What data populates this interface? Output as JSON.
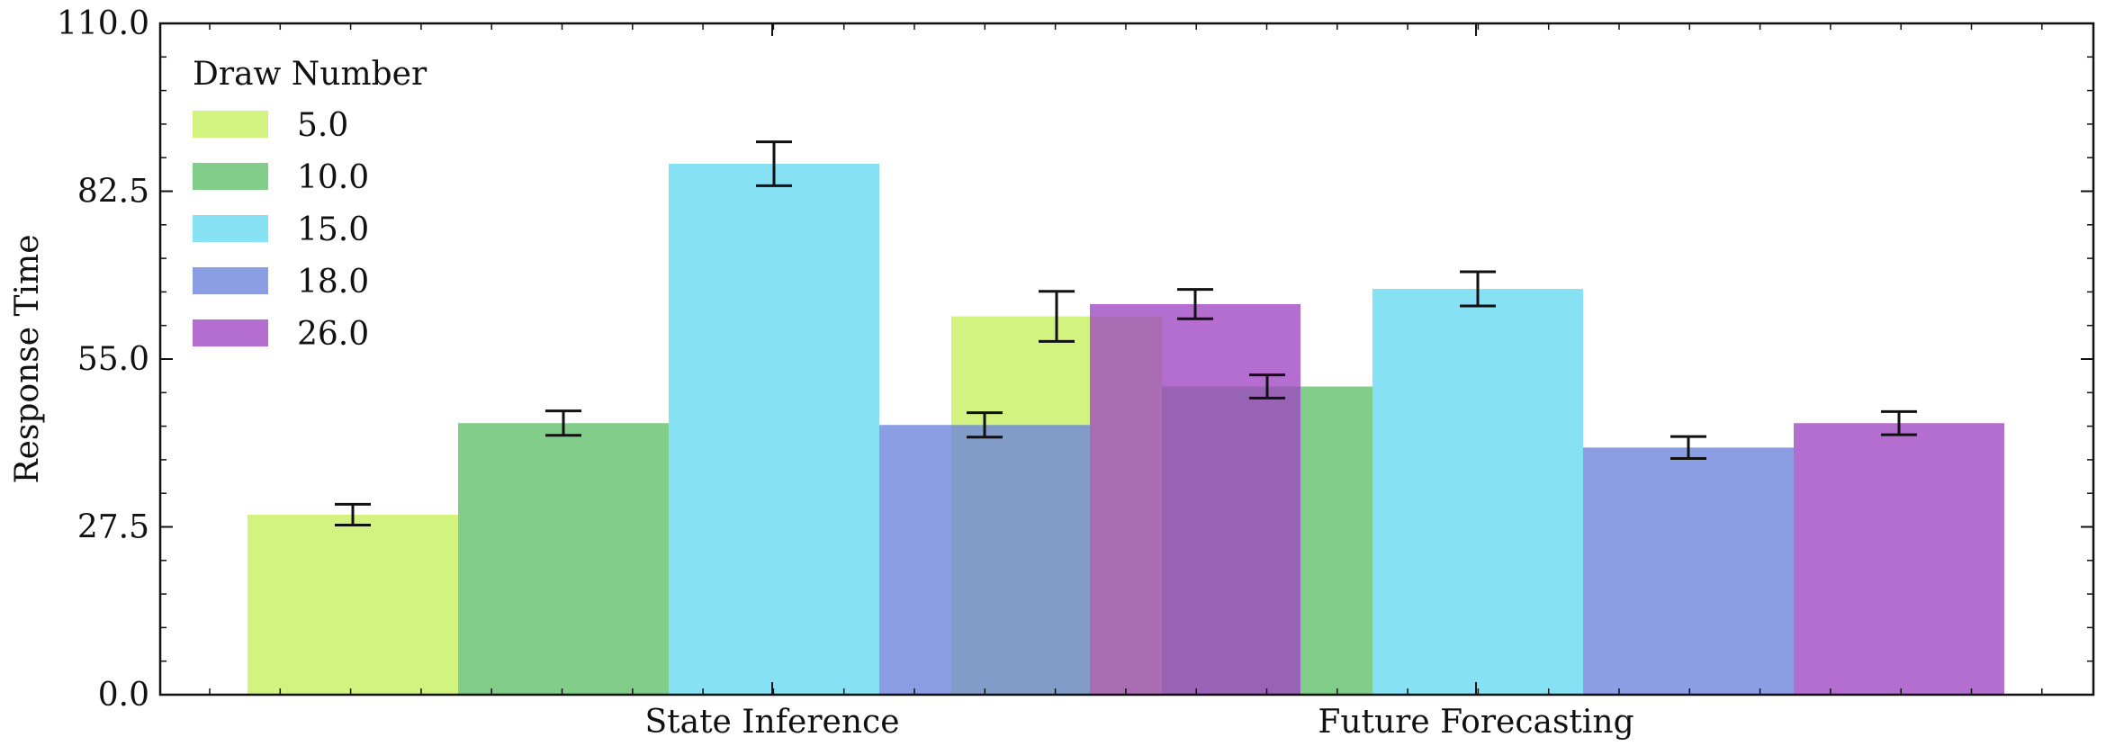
{
  "chart_data": {
    "type": "bar",
    "ylabel": "Response Time",
    "xlabel": "",
    "ylim": [
      0,
      110
    ],
    "yticks": [
      "0.0",
      "27.5",
      "55.0",
      "82.5",
      "110.0"
    ],
    "groups": [
      "State Inference",
      "Future Forecasting"
    ],
    "legend": {
      "title": "Draw Number",
      "placement": "top-left"
    },
    "series": [
      {
        "name": "5.0",
        "color": "#c6ef5c",
        "values": [
          29.5,
          62.0
        ],
        "errors": [
          1.7,
          4.1
        ]
      },
      {
        "name": "10.0",
        "color": "#5dbf68",
        "values": [
          44.5,
          50.5
        ],
        "errors": [
          2.0,
          1.9
        ]
      },
      {
        "name": "15.0",
        "color": "#64d8f2",
        "values": [
          87.0,
          66.5
        ],
        "errors": [
          3.6,
          2.8
        ]
      },
      {
        "name": "18.0",
        "color": "#6a83dd",
        "values": [
          44.2,
          40.5
        ],
        "errors": [
          2.0,
          1.8
        ]
      },
      {
        "name": "26.0",
        "color": "#9f45c1",
        "values": [
          64.0,
          44.5
        ],
        "errors": [
          2.4,
          1.9
        ]
      }
    ]
  }
}
